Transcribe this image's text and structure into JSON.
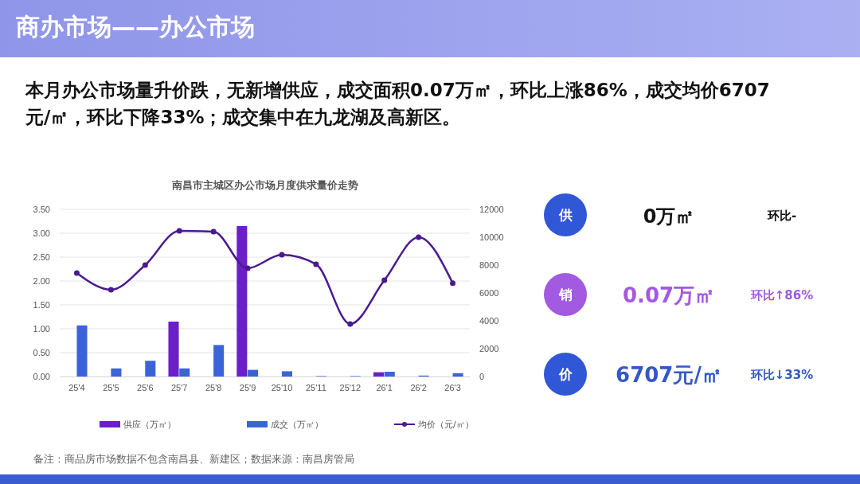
{
  "chart_data": [
    {
      "type": "bar",
      "title": "南昌市主城区办公市场月度供求量价走势",
      "categories": [
        "25'4",
        "25'5",
        "25'6",
        "25'7",
        "25'8",
        "25'9",
        "25'10",
        "25'11",
        "25'12",
        "26'1",
        "26'2",
        "26'3"
      ],
      "series": [
        {
          "name": "供应（万㎡）",
          "color": "#6a1fc9",
          "values": [
            0,
            0,
            0,
            1.15,
            0,
            3.15,
            0,
            0,
            0,
            0.09,
            0,
            0
          ]
        },
        {
          "name": "成交（万㎡）",
          "color": "#3b63d8",
          "values": [
            1.07,
            0.17,
            0.33,
            0.17,
            0.66,
            0.14,
            0.11,
            0.01,
            0.01,
            0.1,
            0.02,
            0.07
          ]
        },
        {
          "name": "均价（元/㎡）",
          "type": "line",
          "axis": "y2",
          "color": "#4b1a8f",
          "marker": "circle",
          "values": [
            7430,
            6230,
            8000,
            10460,
            10400,
            7770,
            8740,
            8060,
            3770,
            6910,
            10000,
            6700
          ]
        }
      ],
      "ylim": [
        0,
        3.5
      ],
      "yticks": [
        {
          "value": 0,
          "label": "0.00"
        },
        {
          "value": 0.5,
          "label": "0.50"
        },
        {
          "value": 1,
          "label": "1.00"
        },
        {
          "value": 1.5,
          "label": "1.50"
        },
        {
          "value": 2,
          "label": "2.00"
        },
        {
          "value": 2.5,
          "label": "2.50"
        },
        {
          "value": 3,
          "label": "3.00"
        },
        {
          "value": 3.5,
          "label": "3.50"
        }
      ],
      "y2lim": [
        0,
        12000
      ],
      "y2ticks": [
        0,
        2000,
        4000,
        6000,
        8000,
        10000,
        12000
      ],
      "grid": "y",
      "legend": "bottom",
      "annotations": [
        "商办市场——办公市场",
        "本月办公市场量升价跌，无新增供应，成交面积0.07万㎡，环比上涨86%，成交均价6707元/㎡，环比下降33%；成交集中在九龙湖及高新区。",
        "备注：商品房市场数据不包含南昌县、新建区；数据来源：南昌房管局"
      ]
    },
    {
      "type": "other",
      "annotations": [
        "供",
        "0万㎡",
        "环比-",
        "销",
        "0.07万㎡",
        "环比↑86%",
        "价",
        "6707元/㎡",
        "环比↓33%"
      ]
    }
  ]
}
